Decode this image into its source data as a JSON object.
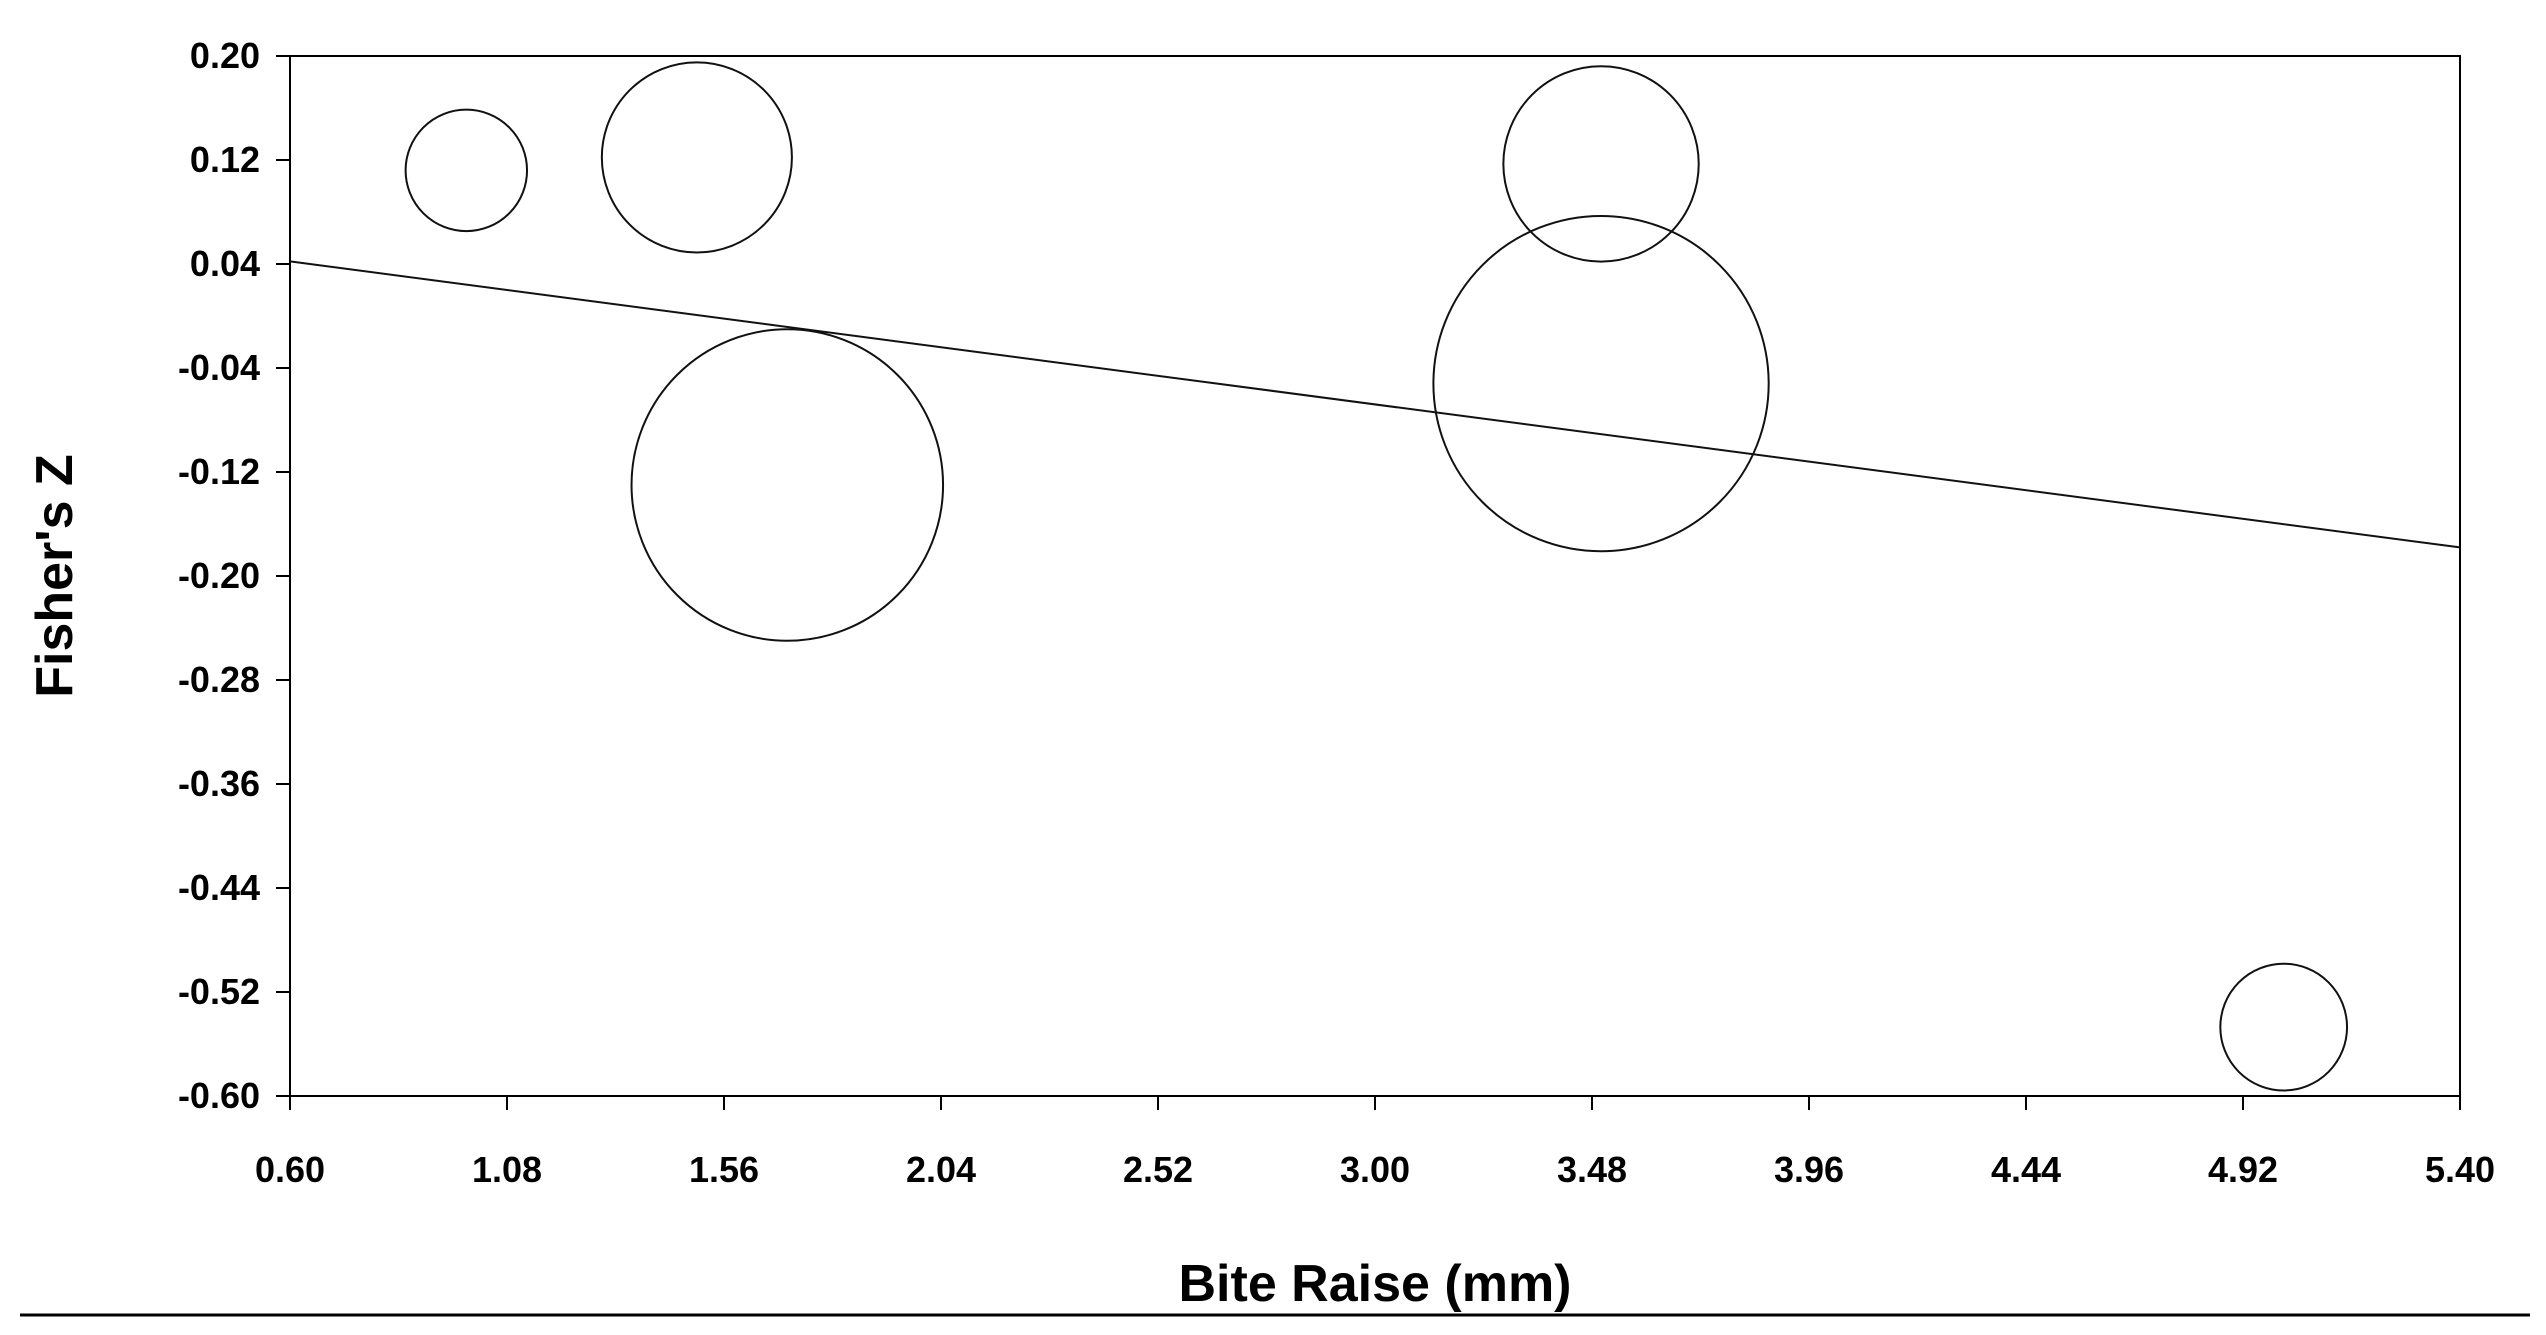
{
  "chart_data": {
    "type": "scatter",
    "subtype": "bubble",
    "title": "",
    "xlabel": "Bite Raise (mm)",
    "ylabel": "Fisher's Z",
    "xlim": [
      0.6,
      5.4
    ],
    "ylim": [
      -0.6,
      0.2
    ],
    "x_ticks": [
      "0.60",
      "1.08",
      "1.56",
      "2.04",
      "2.52",
      "3.00",
      "3.48",
      "3.96",
      "4.44",
      "4.92",
      "5.40"
    ],
    "y_ticks": [
      "0.20",
      "0.12",
      "0.04",
      "-0.04",
      "-0.12",
      "-0.20",
      "-0.28",
      "-0.36",
      "-0.44",
      "-0.52",
      "-0.60"
    ],
    "points": [
      {
        "x": 0.99,
        "y": 0.112,
        "size": 0.46
      },
      {
        "x": 1.5,
        "y": 0.122,
        "size": 0.72
      },
      {
        "x": 1.7,
        "y": -0.13,
        "size": 1.18
      },
      {
        "x": 3.5,
        "y": 0.117,
        "size": 0.74
      },
      {
        "x": 3.5,
        "y": -0.052,
        "size": 1.27
      },
      {
        "x": 5.01,
        "y": -0.547,
        "size": 0.48
      }
    ],
    "regression_line": {
      "x": [
        0.6,
        5.4
      ],
      "y": [
        0.042,
        -0.178
      ]
    },
    "grid": false,
    "legend": "none"
  }
}
